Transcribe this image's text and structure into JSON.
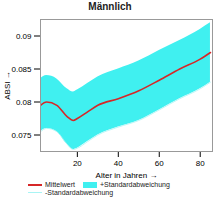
{
  "chart_data": {
    "type": "line",
    "title": "Männlich",
    "x_label": "Alter in Jahren",
    "y_label": "ABSI",
    "x": [
      2,
      5,
      10,
      15,
      18,
      20,
      25,
      30,
      40,
      50,
      60,
      70,
      80,
      85
    ],
    "series": [
      {
        "name": "Mittelwert",
        "color": "#d62728",
        "type": "line",
        "values": [
          0.0795,
          0.08,
          0.0795,
          0.0778,
          0.0772,
          0.0775,
          0.0785,
          0.0795,
          0.0805,
          0.0817,
          0.0833,
          0.085,
          0.0865,
          0.0875
        ]
      },
      {
        "name": "+Standardabweichung",
        "color": "#40f0f0",
        "type": "area",
        "values": [
          0.0835,
          0.084,
          0.0835,
          0.082,
          0.0815,
          0.0818,
          0.0828,
          0.0838,
          0.085,
          0.0862,
          0.0878,
          0.0893,
          0.091,
          0.092
        ]
      },
      {
        "name": "-Standardabweichung",
        "color": "#a8f4f4",
        "type": "line",
        "values": [
          0.0755,
          0.076,
          0.0755,
          0.0736,
          0.0728,
          0.073,
          0.074,
          0.075,
          0.0762,
          0.0772,
          0.0788,
          0.0805,
          0.082,
          0.083
        ]
      }
    ],
    "xlim": [
      2,
      86
    ],
    "ylim": [
      0.0725,
      0.0925
    ],
    "xticks": [
      20,
      40,
      60,
      80
    ],
    "yticks": [
      0.075,
      0.08,
      0.085,
      0.09
    ],
    "grid": false,
    "legend": "bottom"
  }
}
